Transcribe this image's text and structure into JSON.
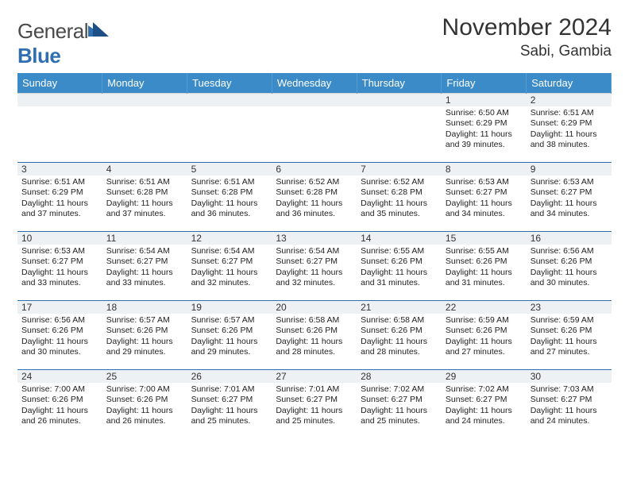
{
  "brand": {
    "word1": "General",
    "word2": "Blue"
  },
  "title": "November 2024",
  "location": "Sabi, Gambia",
  "colors": {
    "header_bg": "#3b8bc9",
    "header_text": "#ffffff",
    "row_divider": "#2f6fb0",
    "daynum_bg": "#eef1f3",
    "brand_blue": "#2f6fb0",
    "page_bg": "#ffffff",
    "text": "#222222"
  },
  "weekdays": [
    "Sunday",
    "Monday",
    "Tuesday",
    "Wednesday",
    "Thursday",
    "Friday",
    "Saturday"
  ],
  "weeks": [
    [
      {
        "n": "",
        "sr": "",
        "ss": "",
        "dl": ""
      },
      {
        "n": "",
        "sr": "",
        "ss": "",
        "dl": ""
      },
      {
        "n": "",
        "sr": "",
        "ss": "",
        "dl": ""
      },
      {
        "n": "",
        "sr": "",
        "ss": "",
        "dl": ""
      },
      {
        "n": "",
        "sr": "",
        "ss": "",
        "dl": ""
      },
      {
        "n": "1",
        "sr": "Sunrise: 6:50 AM",
        "ss": "Sunset: 6:29 PM",
        "dl": "Daylight: 11 hours and 39 minutes."
      },
      {
        "n": "2",
        "sr": "Sunrise: 6:51 AM",
        "ss": "Sunset: 6:29 PM",
        "dl": "Daylight: 11 hours and 38 minutes."
      }
    ],
    [
      {
        "n": "3",
        "sr": "Sunrise: 6:51 AM",
        "ss": "Sunset: 6:29 PM",
        "dl": "Daylight: 11 hours and 37 minutes."
      },
      {
        "n": "4",
        "sr": "Sunrise: 6:51 AM",
        "ss": "Sunset: 6:28 PM",
        "dl": "Daylight: 11 hours and 37 minutes."
      },
      {
        "n": "5",
        "sr": "Sunrise: 6:51 AM",
        "ss": "Sunset: 6:28 PM",
        "dl": "Daylight: 11 hours and 36 minutes."
      },
      {
        "n": "6",
        "sr": "Sunrise: 6:52 AM",
        "ss": "Sunset: 6:28 PM",
        "dl": "Daylight: 11 hours and 36 minutes."
      },
      {
        "n": "7",
        "sr": "Sunrise: 6:52 AM",
        "ss": "Sunset: 6:28 PM",
        "dl": "Daylight: 11 hours and 35 minutes."
      },
      {
        "n": "8",
        "sr": "Sunrise: 6:53 AM",
        "ss": "Sunset: 6:27 PM",
        "dl": "Daylight: 11 hours and 34 minutes."
      },
      {
        "n": "9",
        "sr": "Sunrise: 6:53 AM",
        "ss": "Sunset: 6:27 PM",
        "dl": "Daylight: 11 hours and 34 minutes."
      }
    ],
    [
      {
        "n": "10",
        "sr": "Sunrise: 6:53 AM",
        "ss": "Sunset: 6:27 PM",
        "dl": "Daylight: 11 hours and 33 minutes."
      },
      {
        "n": "11",
        "sr": "Sunrise: 6:54 AM",
        "ss": "Sunset: 6:27 PM",
        "dl": "Daylight: 11 hours and 33 minutes."
      },
      {
        "n": "12",
        "sr": "Sunrise: 6:54 AM",
        "ss": "Sunset: 6:27 PM",
        "dl": "Daylight: 11 hours and 32 minutes."
      },
      {
        "n": "13",
        "sr": "Sunrise: 6:54 AM",
        "ss": "Sunset: 6:27 PM",
        "dl": "Daylight: 11 hours and 32 minutes."
      },
      {
        "n": "14",
        "sr": "Sunrise: 6:55 AM",
        "ss": "Sunset: 6:26 PM",
        "dl": "Daylight: 11 hours and 31 minutes."
      },
      {
        "n": "15",
        "sr": "Sunrise: 6:55 AM",
        "ss": "Sunset: 6:26 PM",
        "dl": "Daylight: 11 hours and 31 minutes."
      },
      {
        "n": "16",
        "sr": "Sunrise: 6:56 AM",
        "ss": "Sunset: 6:26 PM",
        "dl": "Daylight: 11 hours and 30 minutes."
      }
    ],
    [
      {
        "n": "17",
        "sr": "Sunrise: 6:56 AM",
        "ss": "Sunset: 6:26 PM",
        "dl": "Daylight: 11 hours and 30 minutes."
      },
      {
        "n": "18",
        "sr": "Sunrise: 6:57 AM",
        "ss": "Sunset: 6:26 PM",
        "dl": "Daylight: 11 hours and 29 minutes."
      },
      {
        "n": "19",
        "sr": "Sunrise: 6:57 AM",
        "ss": "Sunset: 6:26 PM",
        "dl": "Daylight: 11 hours and 29 minutes."
      },
      {
        "n": "20",
        "sr": "Sunrise: 6:58 AM",
        "ss": "Sunset: 6:26 PM",
        "dl": "Daylight: 11 hours and 28 minutes."
      },
      {
        "n": "21",
        "sr": "Sunrise: 6:58 AM",
        "ss": "Sunset: 6:26 PM",
        "dl": "Daylight: 11 hours and 28 minutes."
      },
      {
        "n": "22",
        "sr": "Sunrise: 6:59 AM",
        "ss": "Sunset: 6:26 PM",
        "dl": "Daylight: 11 hours and 27 minutes."
      },
      {
        "n": "23",
        "sr": "Sunrise: 6:59 AM",
        "ss": "Sunset: 6:26 PM",
        "dl": "Daylight: 11 hours and 27 minutes."
      }
    ],
    [
      {
        "n": "24",
        "sr": "Sunrise: 7:00 AM",
        "ss": "Sunset: 6:26 PM",
        "dl": "Daylight: 11 hours and 26 minutes."
      },
      {
        "n": "25",
        "sr": "Sunrise: 7:00 AM",
        "ss": "Sunset: 6:26 PM",
        "dl": "Daylight: 11 hours and 26 minutes."
      },
      {
        "n": "26",
        "sr": "Sunrise: 7:01 AM",
        "ss": "Sunset: 6:27 PM",
        "dl": "Daylight: 11 hours and 25 minutes."
      },
      {
        "n": "27",
        "sr": "Sunrise: 7:01 AM",
        "ss": "Sunset: 6:27 PM",
        "dl": "Daylight: 11 hours and 25 minutes."
      },
      {
        "n": "28",
        "sr": "Sunrise: 7:02 AM",
        "ss": "Sunset: 6:27 PM",
        "dl": "Daylight: 11 hours and 25 minutes."
      },
      {
        "n": "29",
        "sr": "Sunrise: 7:02 AM",
        "ss": "Sunset: 6:27 PM",
        "dl": "Daylight: 11 hours and 24 minutes."
      },
      {
        "n": "30",
        "sr": "Sunrise: 7:03 AM",
        "ss": "Sunset: 6:27 PM",
        "dl": "Daylight: 11 hours and 24 minutes."
      }
    ]
  ]
}
